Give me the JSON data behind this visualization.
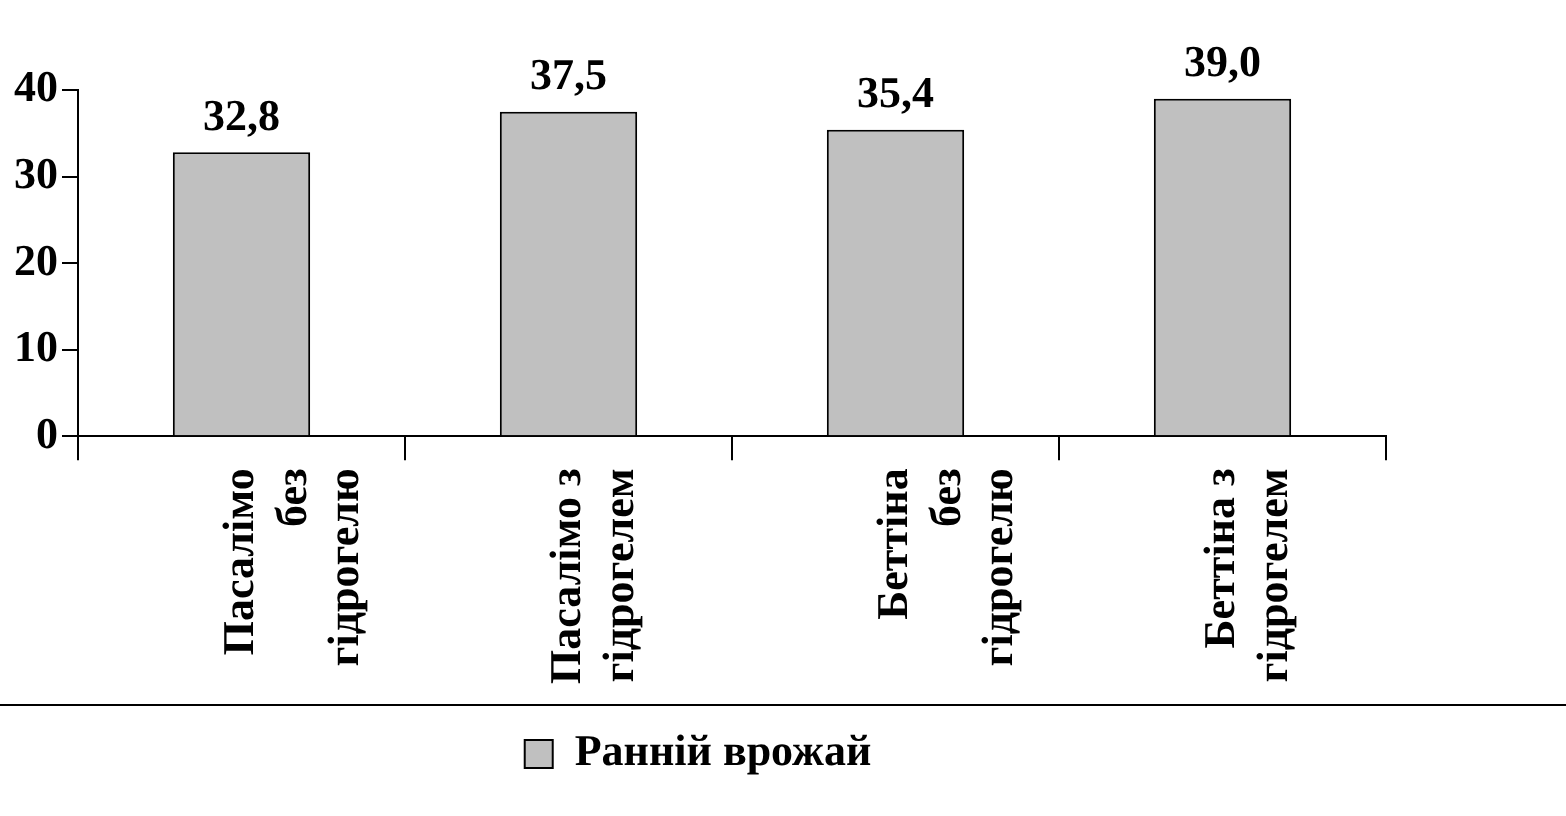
{
  "chart_data": {
    "type": "bar",
    "categories": [
      "Пасалімо без гідрогелю",
      "Пасалімо з гідрогелем",
      "Беттіна без гідрогелю",
      "Беттіна з гідрогелем"
    ],
    "series": [
      {
        "name": "Ранній врожай",
        "color": "#c0c0c0",
        "values": [
          32.8,
          37.5,
          35.4,
          39.0
        ]
      }
    ],
    "value_labels": [
      "32,8",
      "37,5",
      "35,4",
      "39,0"
    ],
    "ylim": [
      0,
      40
    ],
    "yticks": [
      0,
      10,
      20,
      30,
      40
    ],
    "grid": false,
    "legend": "bottom"
  }
}
